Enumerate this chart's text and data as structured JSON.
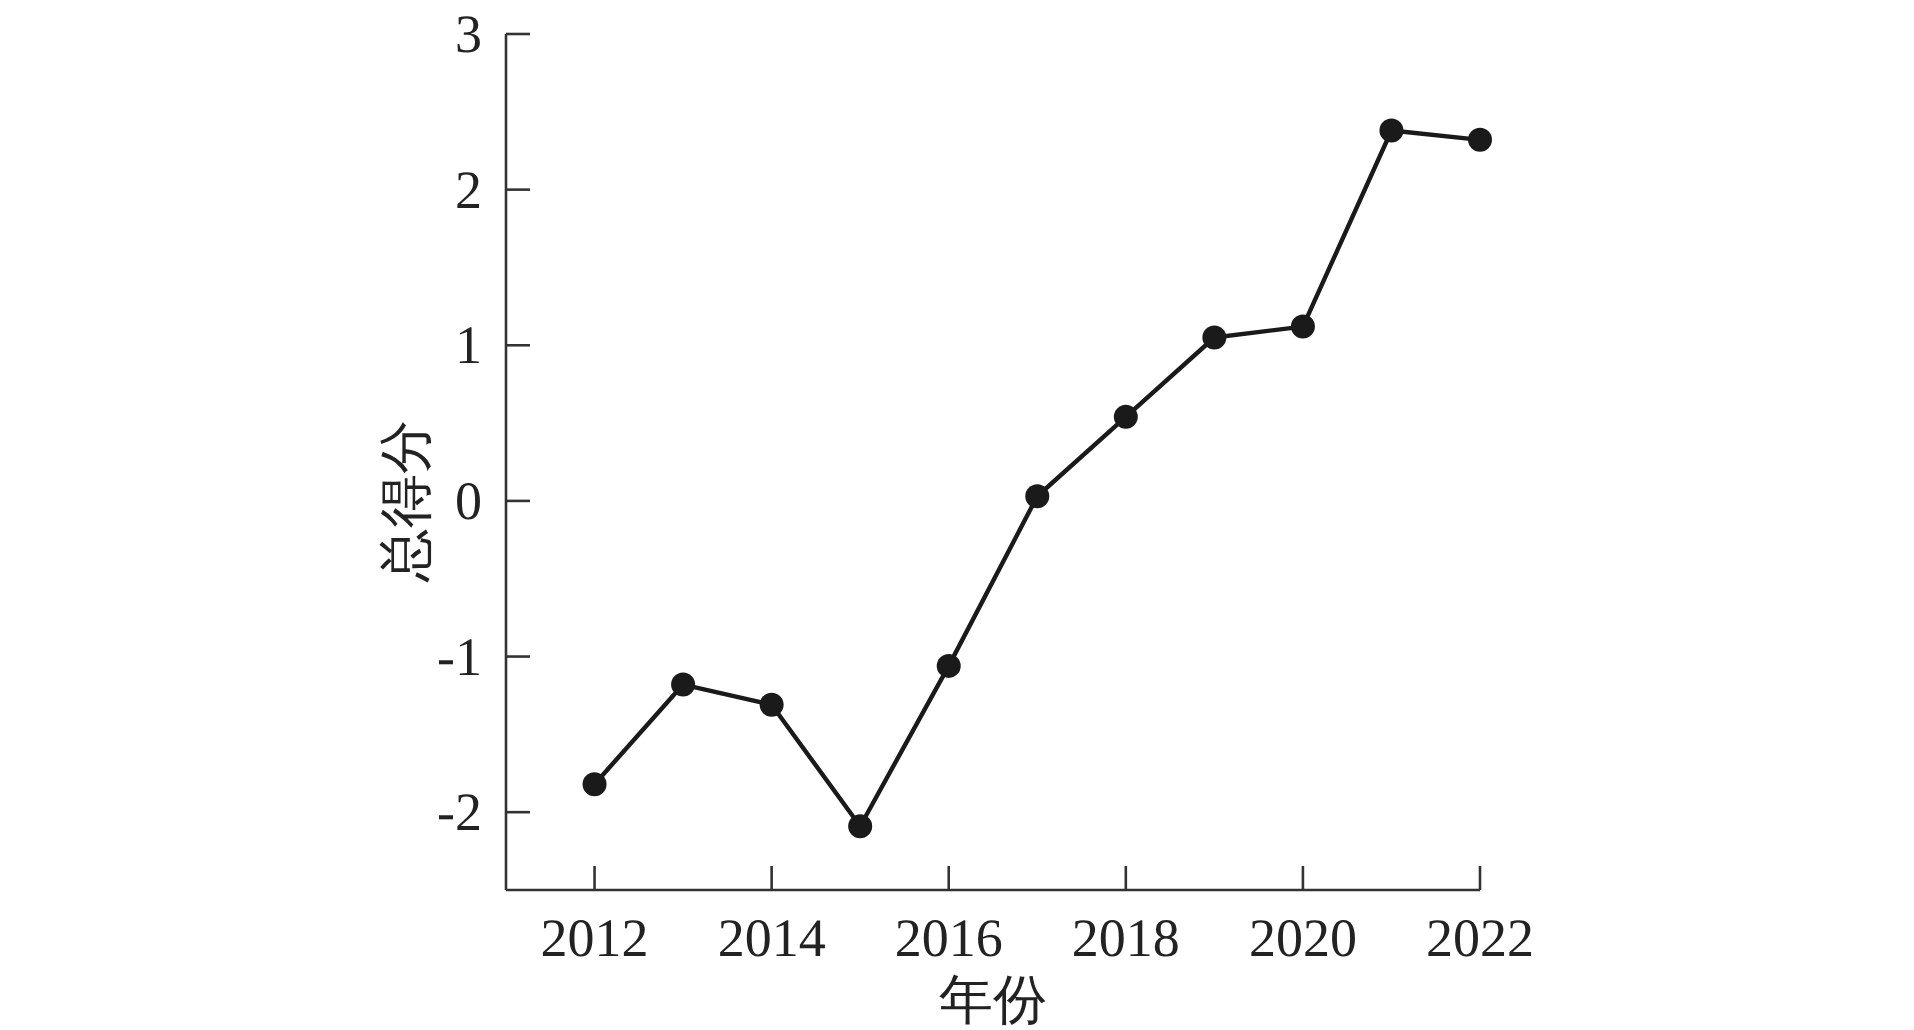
{
  "chart_data": {
    "type": "line",
    "xlabel": "年份",
    "ylabel": "总得分",
    "x": [
      2012,
      2013,
      2014,
      2015,
      2016,
      2017,
      2018,
      2019,
      2020,
      2021,
      2022
    ],
    "series": [
      {
        "color": "#1a1a1a",
        "values": [
          -1.82,
          -1.18,
          -1.31,
          -2.09,
          -1.06,
          0.03,
          0.54,
          1.05,
          1.12,
          2.38,
          2.32
        ]
      }
    ],
    "xlim": [
      2011,
      2022
    ],
    "xticks": [
      2012,
      2014,
      2016,
      2018,
      2020,
      2022
    ],
    "ylim": [
      -2.5,
      3
    ],
    "yticks": [
      -2,
      -1,
      0,
      1,
      2,
      3
    ],
    "marker": "circle",
    "line_style": "solid"
  }
}
